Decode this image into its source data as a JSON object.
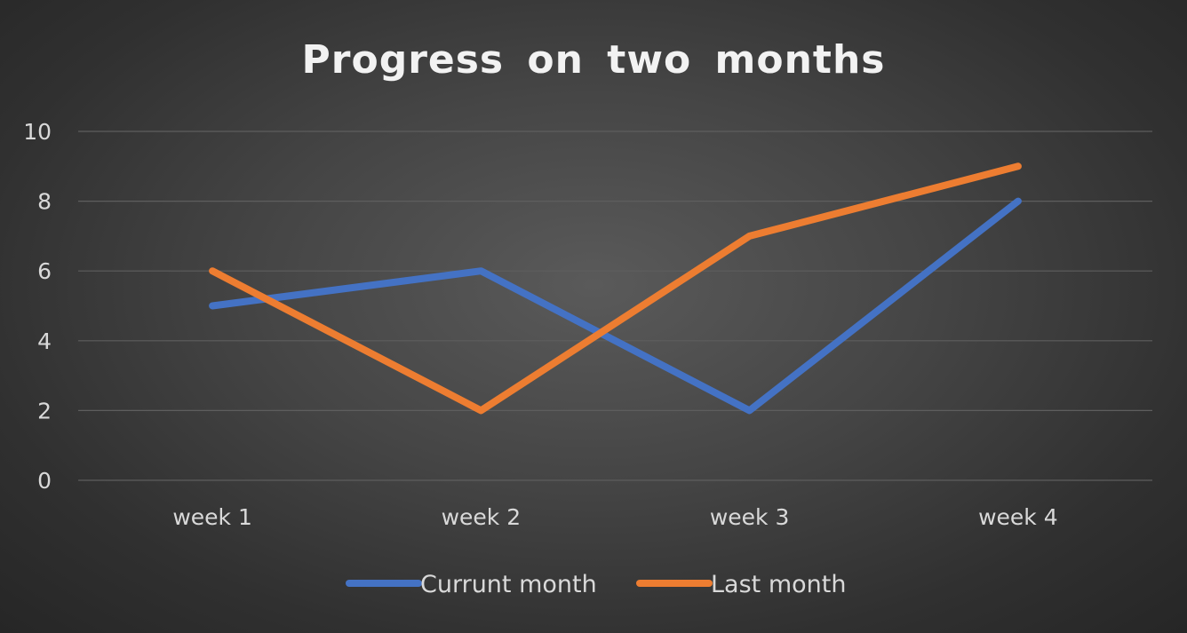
{
  "chart_data": {
    "type": "line",
    "title": "Progress  on  two  months",
    "categories": [
      "week 1",
      "week 2",
      "week 3",
      "week 4"
    ],
    "ylim": [
      0,
      10
    ],
    "yticks": [
      0,
      2,
      4,
      6,
      8,
      10
    ],
    "grid": true,
    "legend_position": "bottom",
    "series": [
      {
        "name": "Currunt month",
        "color": "#4472c4",
        "values": [
          5,
          6,
          2,
          8
        ]
      },
      {
        "name": "Last month",
        "color": "#ed7d31",
        "values": [
          6,
          2,
          7,
          9
        ]
      }
    ]
  }
}
